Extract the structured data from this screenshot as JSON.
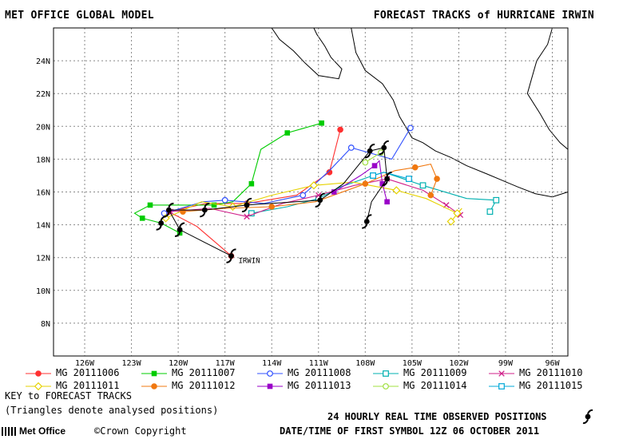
{
  "header": {
    "left": "MET OFFICE GLOBAL MODEL",
    "right": "FORECAST TRACKS of HURRICANE IRWIN"
  },
  "map": {
    "lon_range": [
      -128,
      -95
    ],
    "lat_range": [
      6,
      26
    ],
    "x_ticks": [
      "126W",
      "123W",
      "120W",
      "117W",
      "114W",
      "111W",
      "108W",
      "105W",
      "102W",
      "99W",
      "96W"
    ],
    "y_ticks": [
      "8N",
      "10N",
      "12N",
      "14N",
      "16N",
      "18N",
      "20N",
      "22N",
      "24N"
    ],
    "storm_label": "IRWIN"
  },
  "legend": {
    "tracks": [
      {
        "label": "MG 20111006",
        "marker": "circle-filled",
        "color": "#ff3030"
      },
      {
        "label": "MG 20111007",
        "marker": "square-filled",
        "color": "#00cc00"
      },
      {
        "label": "MG 20111008",
        "marker": "circle-open",
        "color": "#3050ff"
      },
      {
        "label": "MG 20111009",
        "marker": "square-open",
        "color": "#00b0b0"
      },
      {
        "label": "MG 20111010",
        "marker": "x",
        "color": "#d0208a"
      },
      {
        "label": "MG 20111011",
        "marker": "diamond-open",
        "color": "#e6d200"
      },
      {
        "label": "MG 20111012",
        "marker": "circle-filled",
        "color": "#f07810"
      },
      {
        "label": "MG 20111013",
        "marker": "square-filled",
        "color": "#9a00c8"
      },
      {
        "label": "MG 20111014",
        "marker": "circle-open",
        "color": "#a0e040"
      },
      {
        "label": "MG 20111015",
        "marker": "square-open",
        "color": "#00a8d8"
      }
    ],
    "key_title": "KEY to FORECAST TRACKS",
    "key_note": "(Triangles denote analysed positions)"
  },
  "footer": {
    "observed": "24 HOURLY REAL TIME OBSERVED POSITIONS",
    "logo": "Met Office",
    "copyright": "©Crown Copyright",
    "datetime": "DATE/TIME OF FIRST SYMBOL 12Z 06 OCTOBER 2011"
  },
  "tracks_data": [
    {
      "color": "#ff3030",
      "marker": "circle-filled",
      "points": [
        [
          -116.6,
          12.1
        ],
        [
          -118.8,
          13.9
        ],
        [
          -120.6,
          14.8
        ],
        [
          -118.2,
          15.3
        ],
        [
          -115.6,
          15.3
        ],
        [
          -112.4,
          15.8
        ],
        [
          -110.3,
          17.2
        ],
        [
          -109.6,
          19.8
        ]
      ]
    },
    {
      "color": "#00cc00",
      "marker": "square-filled",
      "points": [
        [
          -119.9,
          13.5
        ],
        [
          -121.1,
          14.1
        ],
        [
          -122.3,
          14.4
        ],
        [
          -122.8,
          14.7
        ],
        [
          -121.8,
          15.2
        ],
        [
          -119.0,
          15.2
        ],
        [
          -117.7,
          15.2
        ],
        [
          -116.5,
          15.4
        ],
        [
          -115.3,
          16.5
        ],
        [
          -114.7,
          18.6
        ],
        [
          -113.0,
          19.6
        ],
        [
          -110.8,
          20.2
        ]
      ]
    },
    {
      "color": "#3050ff",
      "marker": "circle-open",
      "points": [
        [
          -120.9,
          14.7
        ],
        [
          -118.4,
          15.4
        ],
        [
          -117.0,
          15.5
        ],
        [
          -114.5,
          15.3
        ],
        [
          -112.0,
          15.8
        ],
        [
          -110.3,
          17.3
        ],
        [
          -108.9,
          18.7
        ],
        [
          -106.3,
          18.0
        ],
        [
          -105.1,
          19.9
        ]
      ]
    },
    {
      "color": "#00b0b0",
      "marker": "square-open",
      "points": [
        [
          -115.3,
          14.7
        ],
        [
          -113.0,
          15.1
        ],
        [
          -111.0,
          15.6
        ],
        [
          -109.6,
          16.3
        ],
        [
          -107.5,
          17.0
        ],
        [
          -106.8,
          17.2
        ],
        [
          -104.3,
          16.4
        ],
        [
          -101.5,
          15.6
        ],
        [
          -99.6,
          15.5
        ],
        [
          -100.0,
          14.8
        ]
      ]
    },
    {
      "color": "#d0208a",
      "marker": "x",
      "points": [
        [
          -120.5,
          14.8
        ],
        [
          -118.0,
          15.0
        ],
        [
          -115.6,
          14.5
        ],
        [
          -113.3,
          15.3
        ],
        [
          -111.0,
          15.8
        ],
        [
          -108.7,
          16.4
        ],
        [
          -106.6,
          16.8
        ],
        [
          -104.3,
          16.1
        ],
        [
          -102.8,
          15.2
        ],
        [
          -101.9,
          14.6
        ]
      ]
    },
    {
      "color": "#e6d200",
      "marker": "diamond-open",
      "points": [
        [
          -120.8,
          14.4
        ],
        [
          -118.5,
          15.4
        ],
        [
          -116.5,
          15.1
        ],
        [
          -114.0,
          15.8
        ],
        [
          -111.3,
          16.4
        ],
        [
          -108.8,
          16.6
        ],
        [
          -106.0,
          16.1
        ],
        [
          -104.1,
          15.6
        ],
        [
          -102.1,
          14.7
        ],
        [
          -101.8,
          15.0
        ],
        [
          -102.5,
          14.2
        ]
      ]
    },
    {
      "color": "#f07810",
      "marker": "circle-filled",
      "points": [
        [
          -119.7,
          14.8
        ],
        [
          -117.0,
          15.0
        ],
        [
          -114.0,
          15.1
        ],
        [
          -111.2,
          15.4
        ],
        [
          -108.0,
          16.5
        ],
        [
          -106.1,
          17.3
        ],
        [
          -104.8,
          17.5
        ],
        [
          -103.8,
          17.7
        ],
        [
          -103.4,
          16.8
        ],
        [
          -103.8,
          15.8
        ]
      ]
    },
    {
      "color": "#9a00c8",
      "marker": "square-filled",
      "points": [
        [
          -110.0,
          16.0
        ],
        [
          -108.3,
          17.0
        ],
        [
          -107.4,
          17.6
        ],
        [
          -107.1,
          17.9
        ],
        [
          -106.9,
          16.5
        ],
        [
          -106.6,
          15.4
        ]
      ]
    },
    {
      "color": "#a0e040",
      "marker": "circle-open",
      "points": [
        [
          -108.0,
          17.8
        ],
        [
          -107.0,
          18.4
        ]
      ]
    },
    {
      "color": "#00a8d8",
      "marker": "square-open",
      "points": [
        [
          -107.5,
          17.0
        ],
        [
          -106.8,
          17.2
        ],
        [
          -105.2,
          16.8
        ]
      ]
    }
  ],
  "observed_positions": [
    [
      -116.6,
      12.1
    ],
    [
      -119.9,
      13.7
    ],
    [
      -121.1,
      14.1
    ],
    [
      -120.6,
      14.9
    ],
    [
      -118.3,
      14.9
    ],
    [
      -115.6,
      15.2
    ],
    [
      -110.9,
      15.5
    ],
    [
      -107.9,
      14.2
    ],
    [
      -106.6,
      16.8
    ],
    [
      -107.7,
      18.5
    ],
    [
      -106.8,
      18.7
    ]
  ],
  "black_track": [
    [
      -116.6,
      12.1
    ],
    [
      -119.9,
      13.7
    ],
    [
      -120.6,
      14.9
    ],
    [
      -118.3,
      14.9
    ],
    [
      -115.6,
      15.2
    ],
    [
      -110.9,
      15.5
    ],
    [
      -109.4,
      16.5
    ],
    [
      -107.7,
      18.5
    ],
    [
      -106.8,
      18.7
    ],
    [
      -106.6,
      16.8
    ],
    [
      -107.6,
      15.4
    ],
    [
      -107.9,
      14.2
    ]
  ]
}
